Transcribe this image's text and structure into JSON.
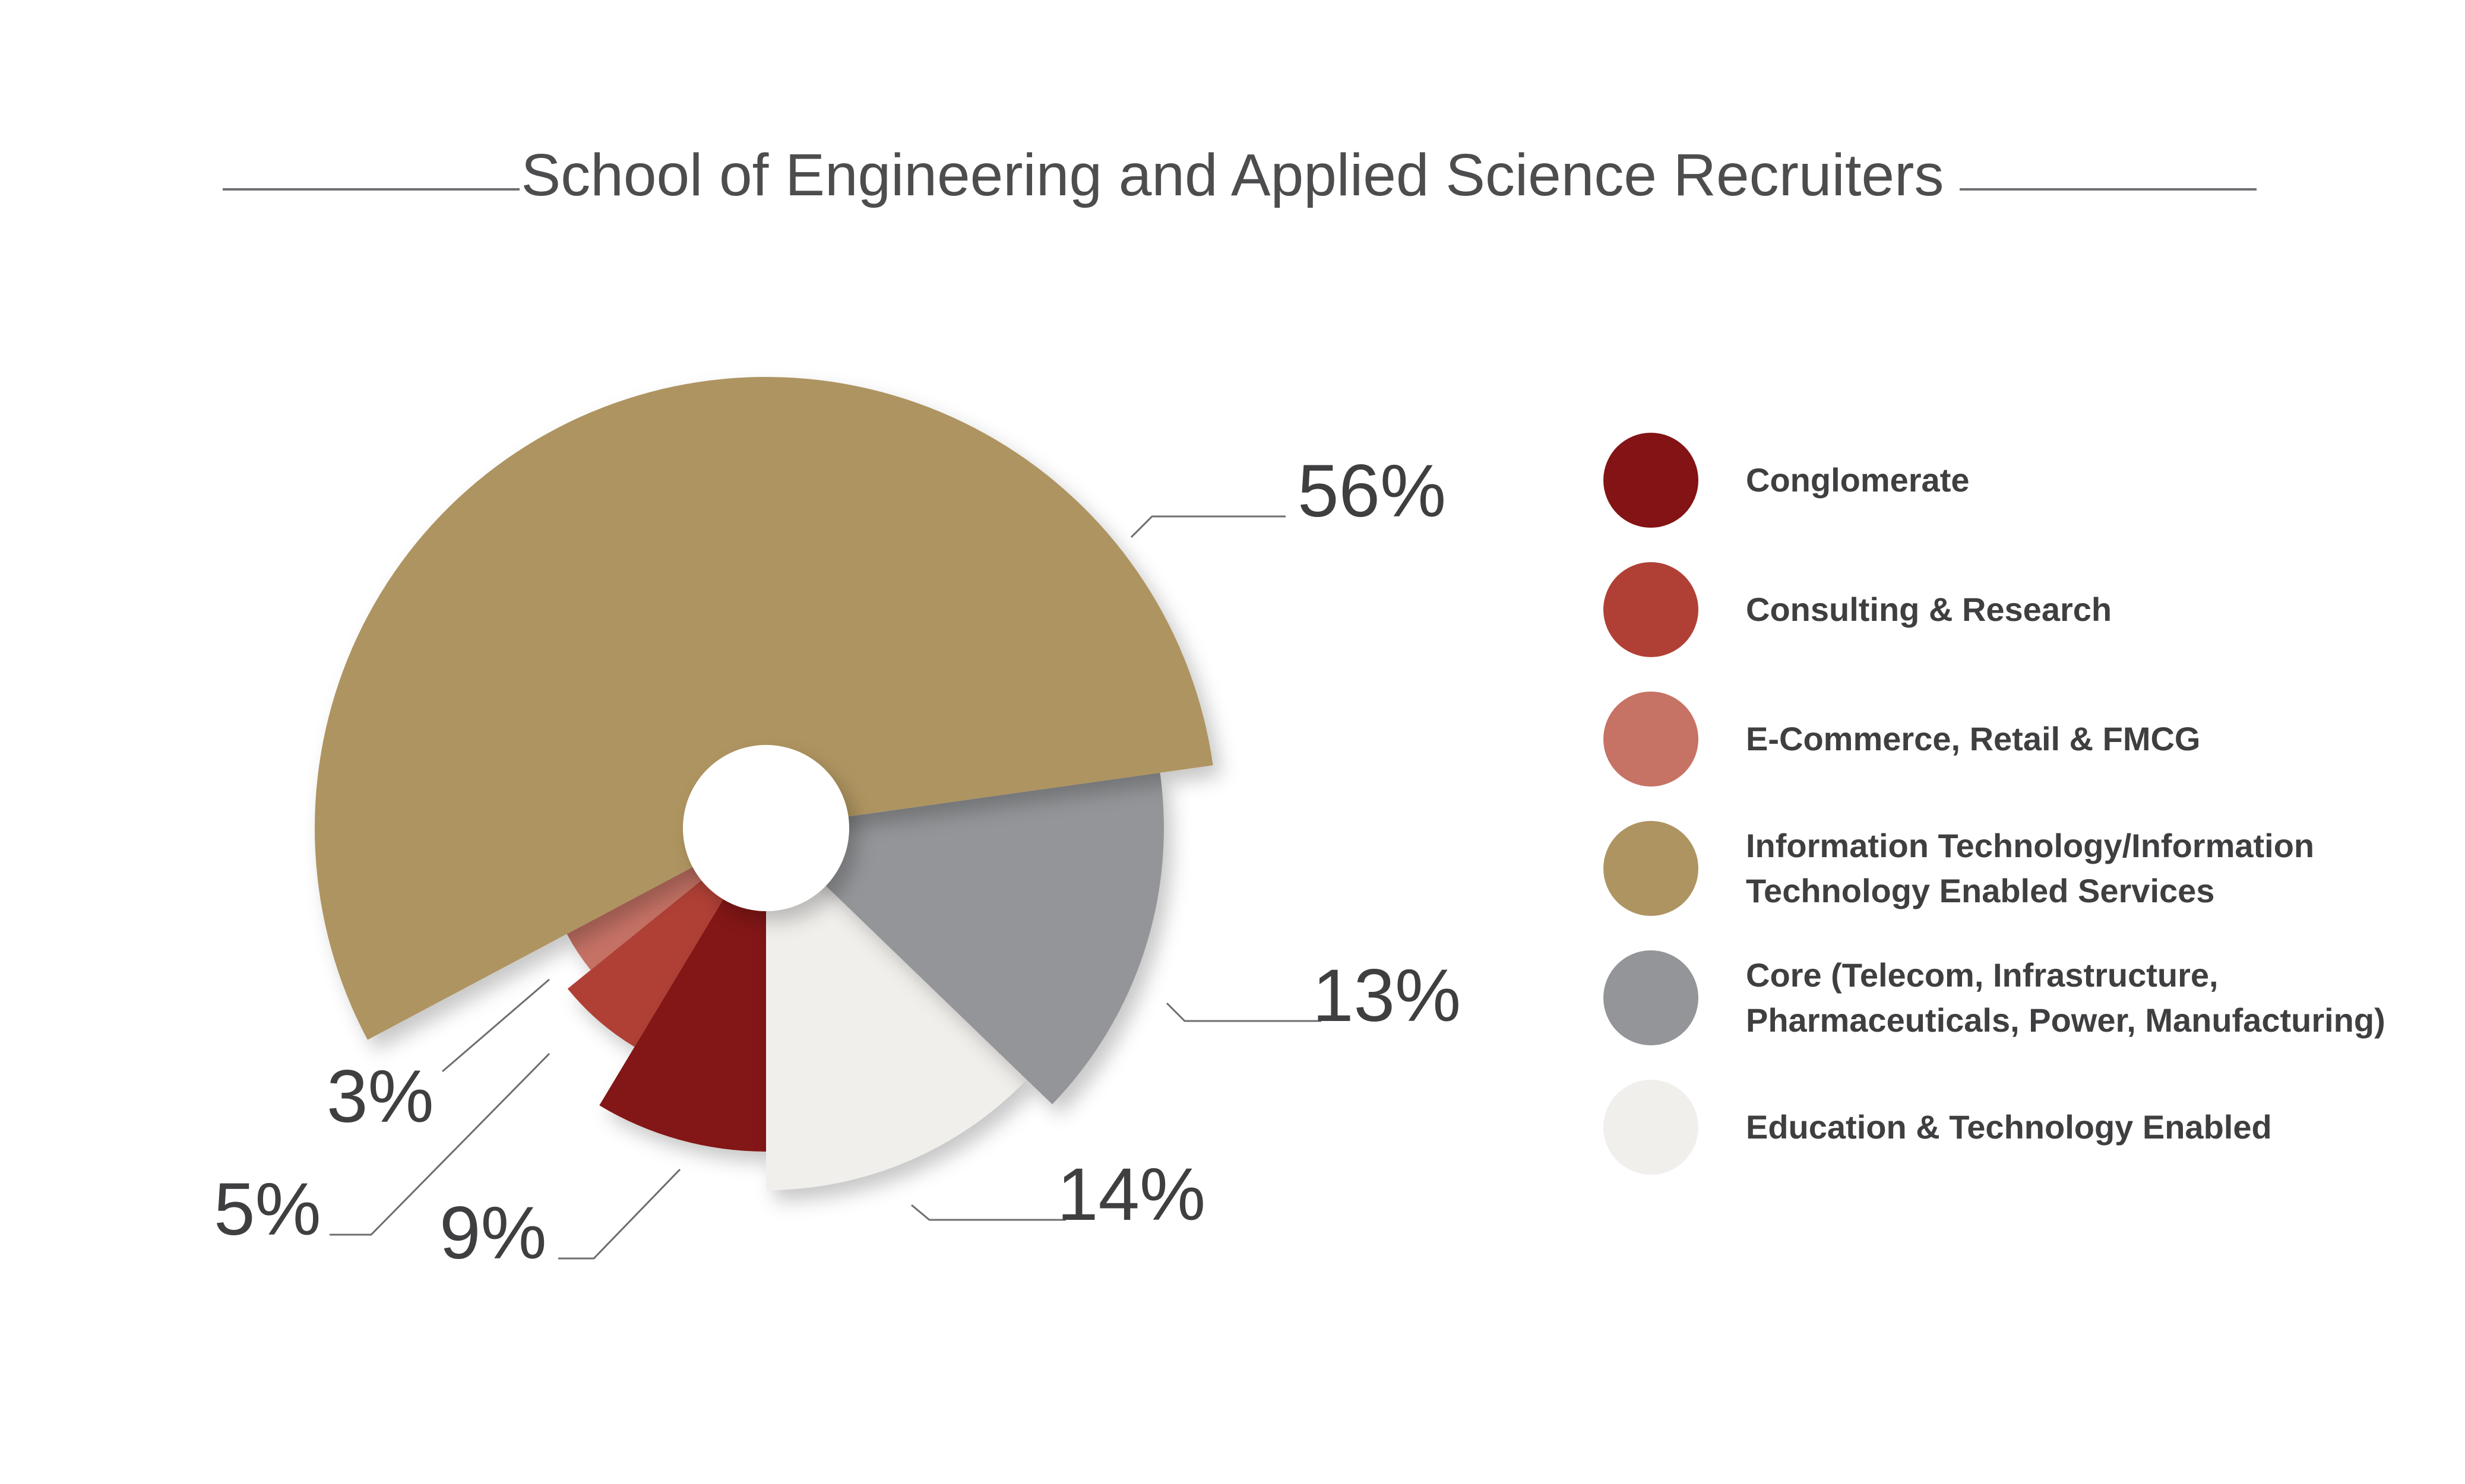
{
  "title": "School of Engineering and Applied Science Recruiters",
  "chart_data": {
    "type": "pie",
    "title": "School of Engineering and Applied Science Recruiters",
    "slices": [
      {
        "key": "it",
        "name": "Information Technology/Information Technology Enabled Services",
        "value": 56,
        "label": "56%",
        "color": "#ae9461"
      },
      {
        "key": "core",
        "name": "Core (Telecom, Infrastructure, Pharmaceuticals, Power, Manufacturing)",
        "value": 13,
        "label": "13%",
        "color": "#939598"
      },
      {
        "key": "edu",
        "name": "Education & Technology Enabled",
        "value": 14,
        "label": "14%",
        "color": "#f1efec"
      },
      {
        "key": "cong",
        "name": "Conglomerate",
        "value": 9,
        "label": "9%",
        "color": "#831315"
      },
      {
        "key": "cons",
        "name": "Consulting & Research",
        "value": 5,
        "label": "5%",
        "color": "#b04035"
      },
      {
        "key": "ecom",
        "name": "E-Commerce, Retail & FMCG",
        "value": 3,
        "label": "3%",
        "color": "#c67265"
      }
    ],
    "legend_placement": "right"
  },
  "legend": [
    {
      "label": "Conglomerate",
      "color": "#831315"
    },
    {
      "label": "Consulting & Research",
      "color": "#b04035"
    },
    {
      "label": "E-Commerce, Retail & FMCG",
      "color": "#c67265"
    },
    {
      "label": "Information Technology/Information Technology Enabled Services",
      "color": "#ae9461"
    },
    {
      "label": "Core (Telecom, Infrastructure, Pharmaceuticals, Power, Manufacturing)",
      "color": "#939598"
    },
    {
      "label": "Education & Technology Enabled",
      "color": "#f1efec"
    }
  ]
}
